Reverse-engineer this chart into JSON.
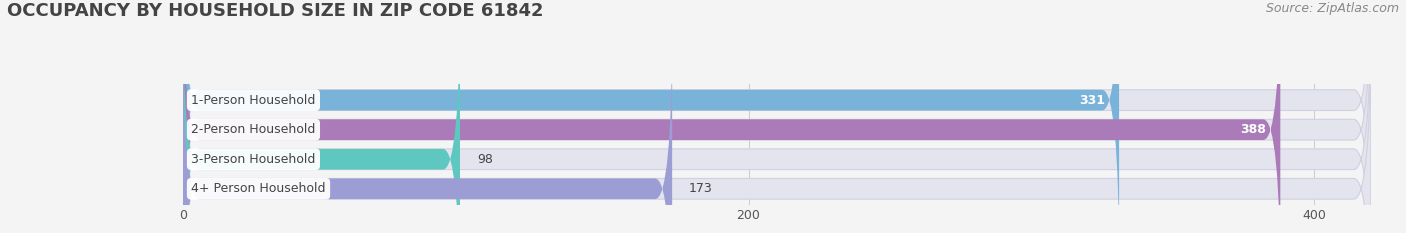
{
  "title": "OCCUPANCY BY HOUSEHOLD SIZE IN ZIP CODE 61842",
  "source": "Source: ZipAtlas.com",
  "categories": [
    "1-Person Household",
    "2-Person Household",
    "3-Person Household",
    "4+ Person Household"
  ],
  "values": [
    331,
    388,
    98,
    173
  ],
  "bar_colors": [
    "#7ab3d9",
    "#aa7bb8",
    "#5ec8c0",
    "#9b9dd4"
  ],
  "label_colors": [
    "white",
    "white",
    "#555555",
    "#555555"
  ],
  "xlim_max": 420,
  "xticks": [
    0,
    200,
    400
  ],
  "title_fontsize": 13,
  "source_fontsize": 9,
  "label_fontsize": 9,
  "value_fontsize": 9,
  "background_color": "#f4f4f4",
  "bar_bg_color": "#e4e4ee",
  "grid_color": "#cccccc",
  "text_color": "#444444",
  "source_color": "#888888"
}
